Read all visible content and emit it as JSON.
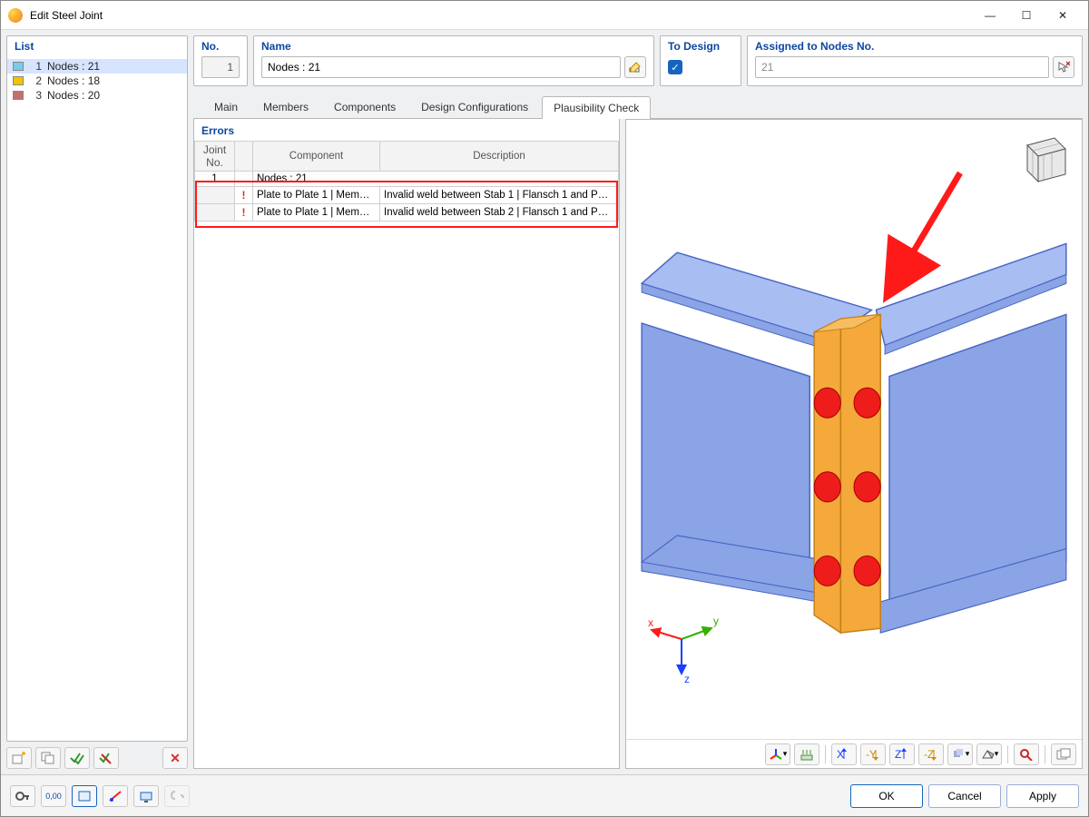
{
  "window": {
    "title": "Edit Steel Joint",
    "accent": "#0d47a1"
  },
  "win_controls": {
    "min": "—",
    "max": "☐",
    "close": "✕"
  },
  "list_panel": {
    "header": "List",
    "items": [
      {
        "num": "1",
        "label": "Nodes : 21",
        "color": "#7cc9e8",
        "selected": true
      },
      {
        "num": "2",
        "label": "Nodes : 18",
        "color": "#f2c200",
        "selected": false
      },
      {
        "num": "3",
        "label": "Nodes : 20",
        "color": "#c1706d",
        "selected": false
      }
    ]
  },
  "fields": {
    "no_label": "No.",
    "no_value": "1",
    "name_label": "Name",
    "name_value": "Nodes : 21",
    "todesign_label": "To Design",
    "nodes_label": "Assigned to Nodes No.",
    "nodes_value": "21"
  },
  "tabs": [
    {
      "label": "Main",
      "active": false
    },
    {
      "label": "Members",
      "active": false
    },
    {
      "label": "Components",
      "active": false
    },
    {
      "label": "Design Configurations",
      "active": false
    },
    {
      "label": "Plausibility Check",
      "active": true
    }
  ],
  "errors": {
    "header": "Errors",
    "columns": {
      "joint": "Joint\nNo.",
      "component": "Component",
      "description": "Description"
    },
    "node_group_joint": "1",
    "node_group_label": "Nodes : 21",
    "rows": [
      {
        "component": "Plate to Plate 1 | Mem…",
        "description": "Invalid weld between Stab 1 | Flansch 1 and P…"
      },
      {
        "component": "Plate to Plate 1 | Mem…",
        "description": "Invalid weld between Stab 2 | Flansch 1 and P…"
      }
    ],
    "highlight_color": "#ff1a1a"
  },
  "axes": {
    "x": "x",
    "y": "y",
    "z": "z",
    "x_color": "#ff1a1a",
    "y_color": "#35b000",
    "z_color": "#1a3fff"
  },
  "arrow_color": "#ff1a1a",
  "view3d": {
    "beam_fill": "#8aa4e6",
    "beam_edge": "#4a66c4",
    "flange_top": "#a8bdf2",
    "plate_fill": "#f4a93a",
    "plate_edge": "#c47f18",
    "bolt_color": "#ef1c1c",
    "background": "#ffffff"
  },
  "buttons": {
    "ok": "OK",
    "cancel": "Cancel",
    "apply": "Apply"
  }
}
